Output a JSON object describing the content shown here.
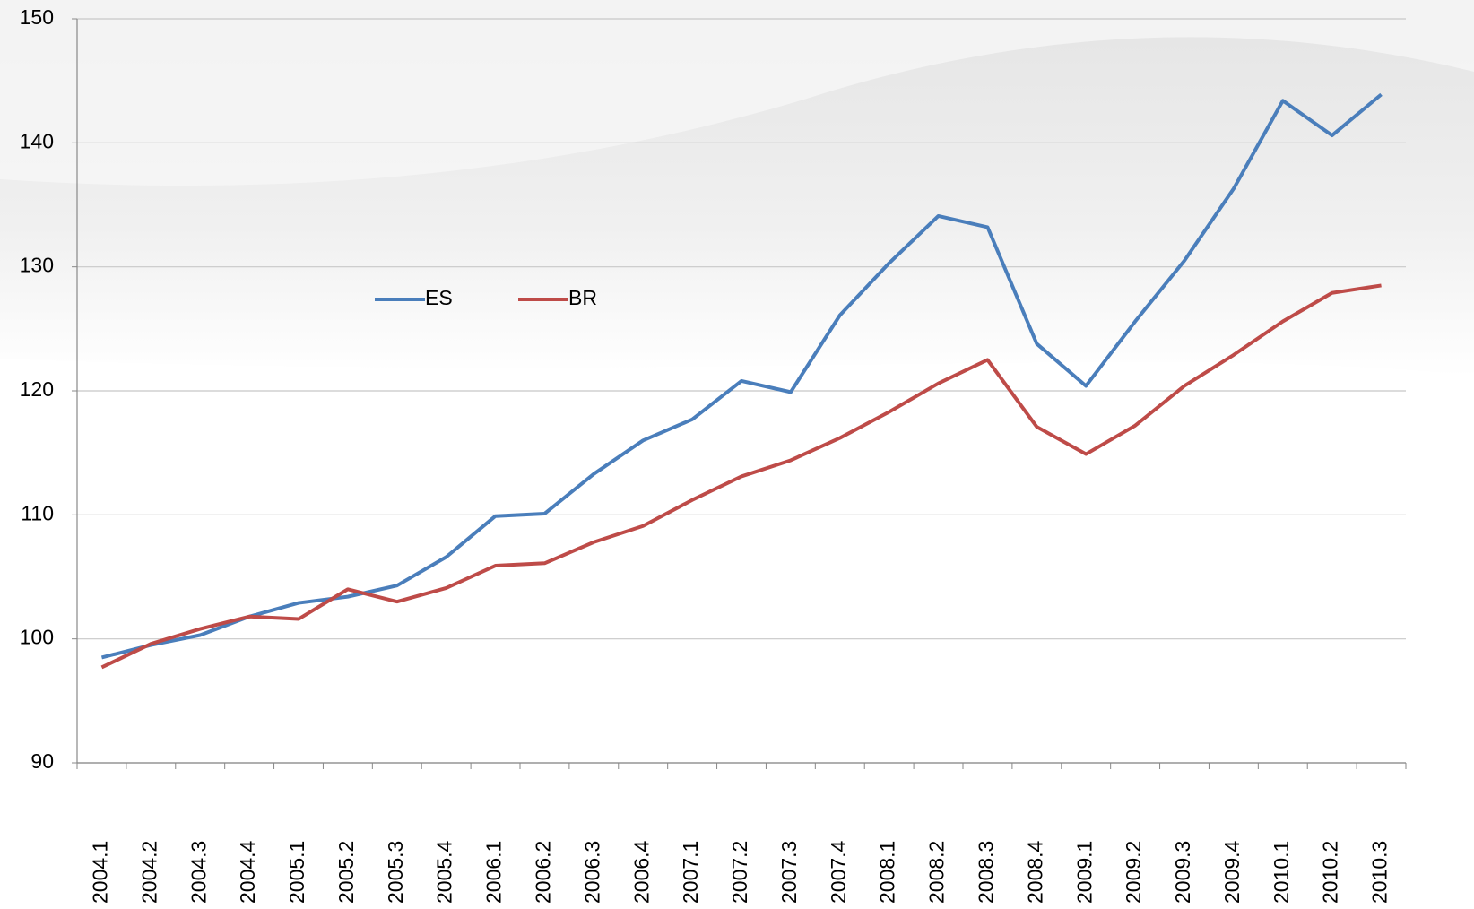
{
  "chart_data": {
    "type": "line",
    "categories": [
      "2004.1",
      "2004.2",
      "2004.3",
      "2004.4",
      "2005.1",
      "2005.2",
      "2005.3",
      "2005.4",
      "2006.1",
      "2006.2",
      "2006.3",
      "2006.4",
      "2007.1",
      "2007.2",
      "2007.3",
      "2007.4",
      "2008.1",
      "2008.2",
      "2008.3",
      "2008.4",
      "2009.1",
      "2009.2",
      "2009.3",
      "2009.4",
      "2010.1",
      "2010.2",
      "2010.3"
    ],
    "series": [
      {
        "name": "ES",
        "color": "#4a7ebb",
        "values": [
          98.5,
          99.5,
          100.3,
          101.8,
          102.9,
          103.4,
          104.3,
          106.6,
          109.9,
          110.1,
          113.3,
          116.0,
          117.7,
          120.8,
          119.9,
          126.1,
          130.3,
          134.1,
          133.2,
          123.8,
          120.4,
          125.6,
          130.5,
          136.3,
          143.4,
          140.6,
          143.9
        ]
      },
      {
        "name": "BR",
        "color": "#be4b48",
        "values": [
          97.7,
          99.6,
          100.8,
          101.8,
          101.6,
          104.0,
          103.0,
          104.1,
          105.9,
          106.1,
          107.8,
          109.1,
          111.2,
          113.1,
          114.4,
          116.2,
          118.3,
          120.6,
          122.5,
          117.1,
          114.9,
          117.2,
          120.4,
          122.9,
          125.6,
          127.9,
          128.5
        ]
      }
    ],
    "ylim": [
      90,
      150
    ],
    "yticks": [
      90,
      100,
      110,
      120,
      130,
      140,
      150
    ],
    "grid": true
  }
}
